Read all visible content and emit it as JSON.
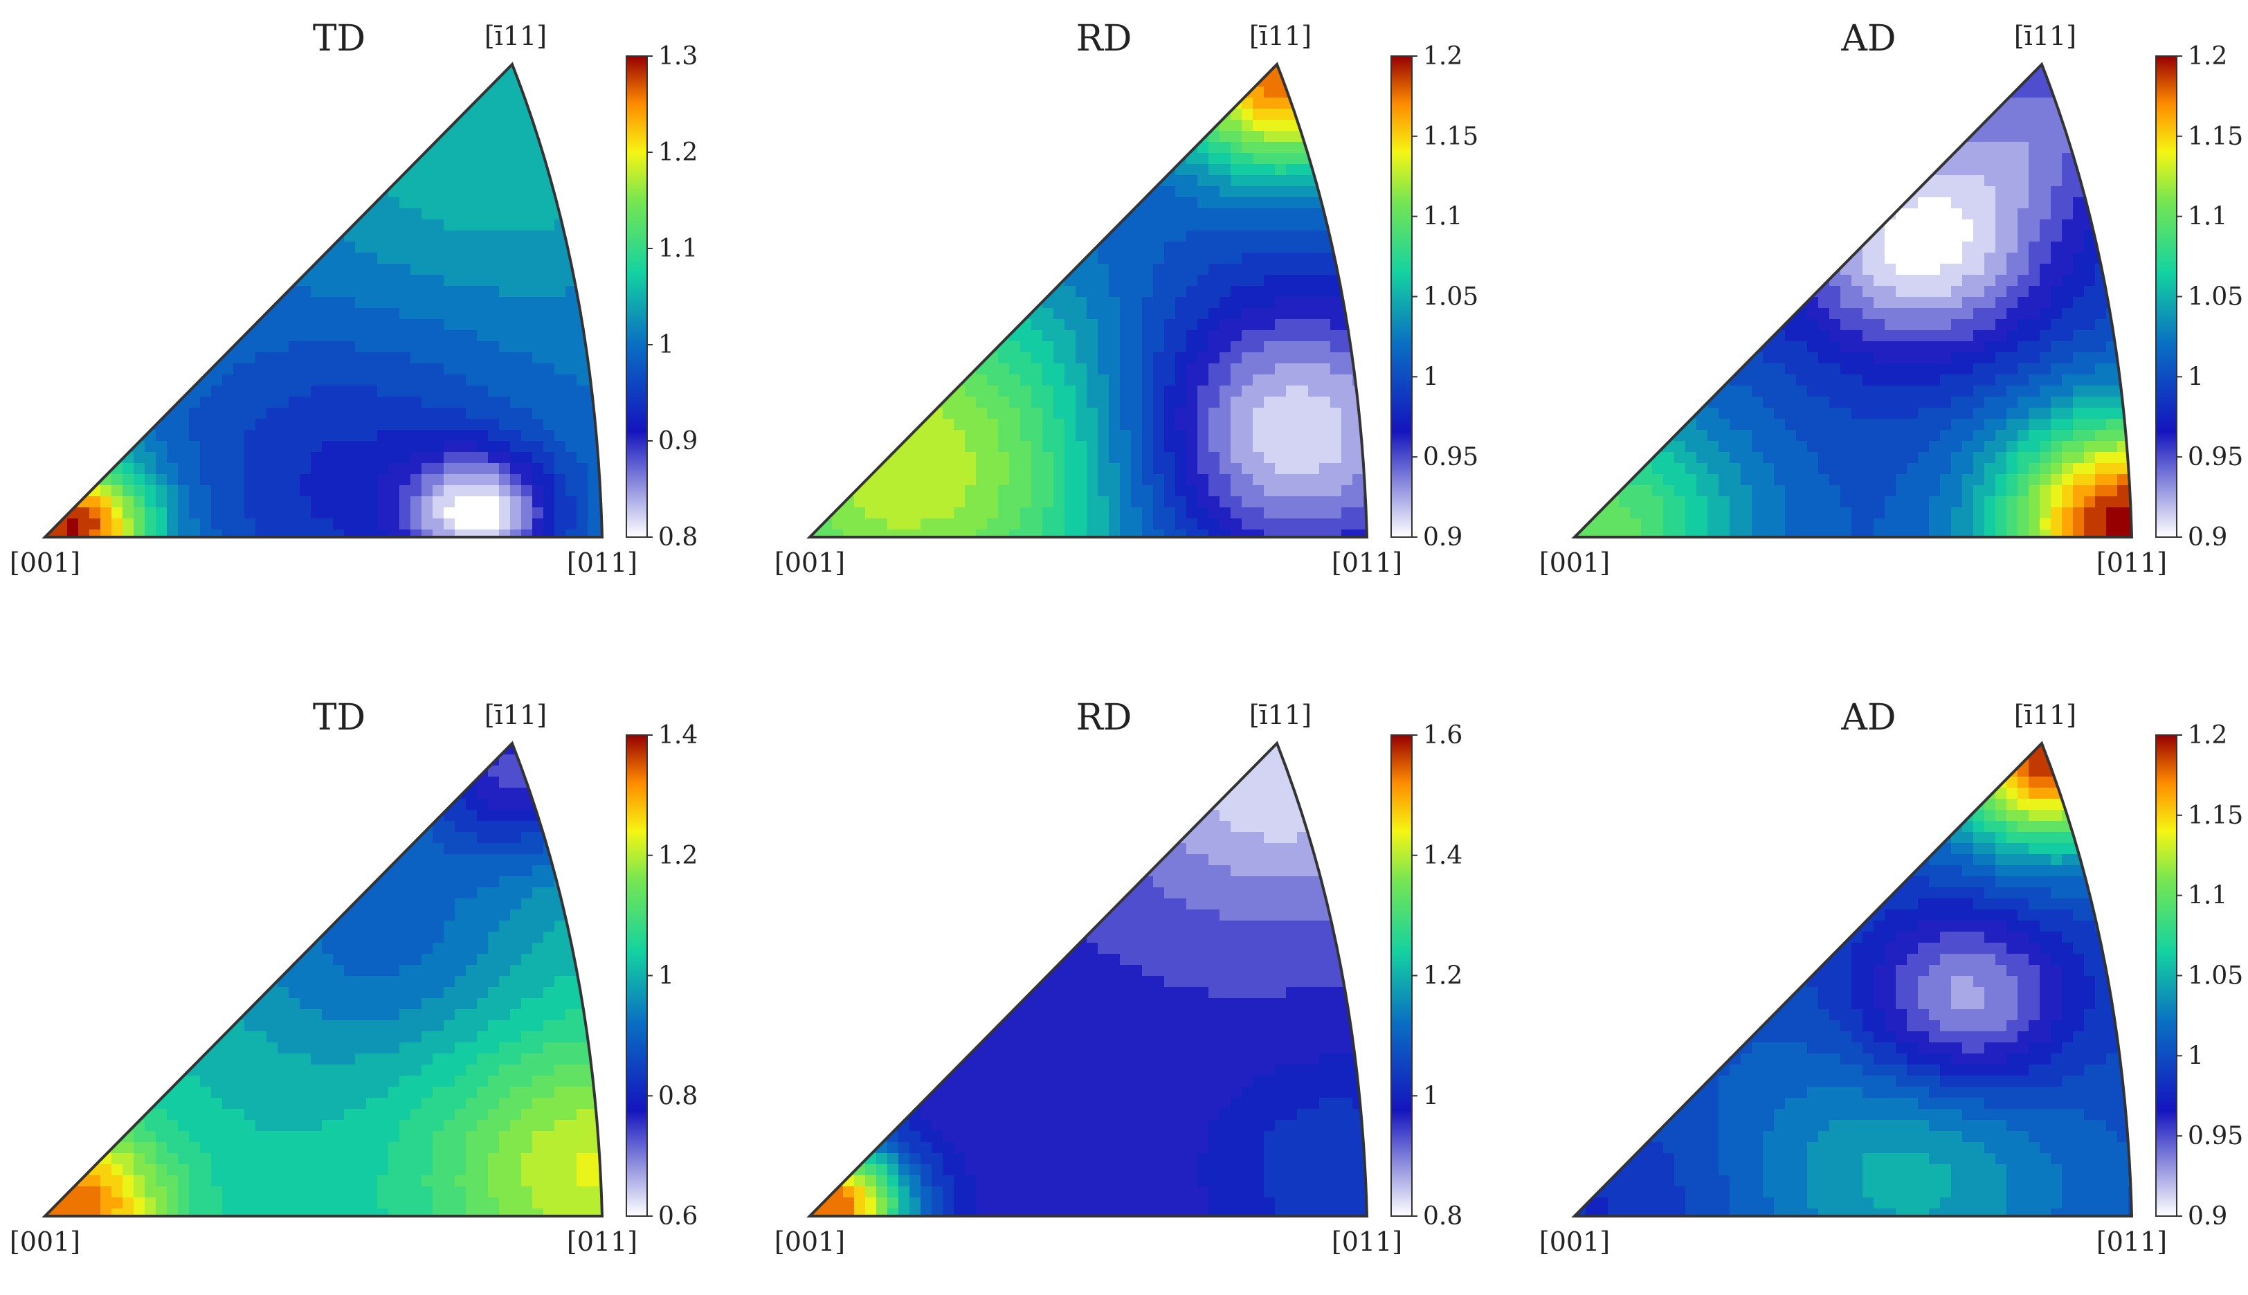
{
  "chart_data": [
    {
      "type": "heatmap",
      "title": "TD",
      "corner_labels": {
        "origin": "[001]",
        "right": "[011]",
        "top": "[ī11]"
      },
      "colorbar": {
        "min": 0.8,
        "max": 1.3,
        "ticks": [
          "1.3",
          "1.2",
          "1.1",
          "1",
          "0.9",
          "0.8"
        ]
      },
      "hotspots": [
        {
          "u": 0.05,
          "v": 0.02,
          "value": 1.3,
          "sigma": 0.1
        },
        {
          "u": 0.78,
          "v": 0.05,
          "value": 0.83,
          "sigma": 0.09
        },
        {
          "u": 0.8,
          "v": 0.85,
          "value": 1.06,
          "sigma": 0.25
        },
        {
          "u": 0.55,
          "v": 0.12,
          "value": 0.93,
          "sigma": 0.22
        }
      ],
      "background_value": 1.0,
      "grid": false
    },
    {
      "type": "heatmap",
      "title": "RD",
      "corner_labels": {
        "origin": "[001]",
        "right": "[011]",
        "top": "[ī11]"
      },
      "colorbar": {
        "min": 0.9,
        "max": 1.2,
        "ticks": [
          "1.2",
          "1.15",
          "1.1",
          "1.05",
          "1",
          "0.95",
          "0.9"
        ]
      },
      "hotspots": [
        {
          "u": 0.85,
          "v": 0.97,
          "value": 1.18,
          "sigma": 0.14
        },
        {
          "u": 0.85,
          "v": 0.22,
          "value": 0.9,
          "sigma": 0.2
        },
        {
          "u": 0.18,
          "v": 0.15,
          "value": 1.13,
          "sigma": 0.3
        }
      ],
      "background_value": 1.0,
      "grid": false
    },
    {
      "type": "heatmap",
      "title": "AD",
      "corner_labels": {
        "origin": "[001]",
        "right": "[011]",
        "top": "[ī11]"
      },
      "colorbar": {
        "min": 0.9,
        "max": 1.2,
        "ticks": [
          "1.2",
          "1.15",
          "1.1",
          "1.05",
          "1",
          "0.95",
          "0.9"
        ]
      },
      "hotspots": [
        {
          "u": 0.99,
          "v": 0.03,
          "value": 1.2,
          "sigma": 0.16
        },
        {
          "u": 0.62,
          "v": 0.62,
          "value": 0.9,
          "sigma": 0.17
        },
        {
          "u": 0.05,
          "v": 0.02,
          "value": 1.1,
          "sigma": 0.18
        },
        {
          "u": 0.85,
          "v": 0.9,
          "value": 0.95,
          "sigma": 0.15
        }
      ],
      "background_value": 1.0,
      "grid": false
    },
    {
      "type": "heatmap",
      "title": "TD",
      "corner_labels": {
        "origin": "[001]",
        "right": "[011]",
        "top": "[ī11]"
      },
      "colorbar": {
        "min": 0.6,
        "max": 1.4,
        "ticks": [
          "1.4",
          "1.2",
          "1",
          "0.8",
          "0.6"
        ]
      },
      "hotspots": [
        {
          "u": 0.05,
          "v": 0.02,
          "value": 1.35,
          "sigma": 0.12
        },
        {
          "u": 0.98,
          "v": 0.1,
          "value": 1.22,
          "sigma": 0.2
        },
        {
          "u": 0.85,
          "v": 0.95,
          "value": 0.75,
          "sigma": 0.13
        },
        {
          "u": 0.6,
          "v": 0.6,
          "value": 0.9,
          "sigma": 0.2
        }
      ],
      "background_value": 1.02,
      "grid": false
    },
    {
      "type": "heatmap",
      "title": "RD",
      "corner_labels": {
        "origin": "[001]",
        "right": "[011]",
        "top": "[ī11]"
      },
      "colorbar": {
        "min": 0.8,
        "max": 1.6,
        "ticks": [
          "1.6",
          "1.4",
          "1.2",
          "1",
          "0.8"
        ]
      },
      "hotspots": [
        {
          "u": 0.04,
          "v": 0.02,
          "value": 1.55,
          "sigma": 0.1
        },
        {
          "u": 0.85,
          "v": 0.95,
          "value": 0.82,
          "sigma": 0.22
        },
        {
          "u": 0.95,
          "v": 0.1,
          "value": 1.05,
          "sigma": 0.15
        }
      ],
      "background_value": 0.96,
      "grid": false
    },
    {
      "type": "heatmap",
      "title": "AD",
      "corner_labels": {
        "origin": "[001]",
        "right": "[011]",
        "top": "[ī11]"
      },
      "colorbar": {
        "min": 0.9,
        "max": 1.2,
        "ticks": [
          "1.2",
          "1.15",
          "1.1",
          "1.05",
          "1",
          "0.95",
          "0.9"
        ]
      },
      "hotspots": [
        {
          "u": 0.85,
          "v": 0.97,
          "value": 1.19,
          "sigma": 0.13
        },
        {
          "u": 0.7,
          "v": 0.45,
          "value": 0.92,
          "sigma": 0.14
        },
        {
          "u": 0.05,
          "v": 0.02,
          "value": 0.98,
          "sigma": 0.15
        },
        {
          "u": 0.6,
          "v": 0.1,
          "value": 1.05,
          "sigma": 0.2
        }
      ],
      "background_value": 1.0,
      "grid": false
    }
  ]
}
